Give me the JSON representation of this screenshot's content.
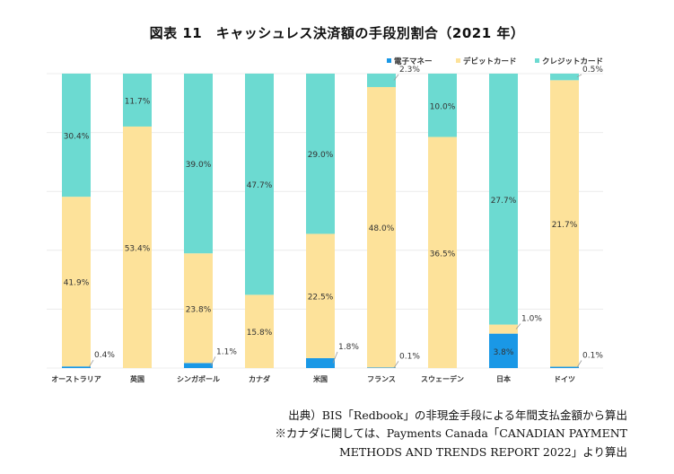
{
  "chart_data": {
    "type": "bar",
    "stacked": true,
    "title": "図表 11　キャッシュレス決済額の手段別割合（2021 年）",
    "categories": [
      "オーストラリア",
      "英国",
      "シンガポール",
      "カナダ",
      "米国",
      "フランス",
      "スウェーデン",
      "日本",
      "ドイツ"
    ],
    "series": [
      {
        "name": "電子マネー",
        "color": "#1a98e6",
        "values": [
          0.4,
          0,
          1.1,
          0,
          1.8,
          0.1,
          0,
          3.8,
          0.1
        ],
        "labels": [
          "0.4%",
          "",
          "1.1%",
          "",
          "1.8%",
          "0.1%",
          "",
          "3.8%",
          "0.1%"
        ]
      },
      {
        "name": "デビットカード",
        "color": "#fde29a",
        "values": [
          41.9,
          53.4,
          23.8,
          15.8,
          22.5,
          48.0,
          36.5,
          1.0,
          21.7
        ],
        "labels": [
          "41.9%",
          "53.4%",
          "23.8%",
          "15.8%",
          "22.5%",
          "48.0%",
          "36.5%",
          "1.0%",
          "21.7%"
        ]
      },
      {
        "name": "クレジットカード",
        "color": "#6cdad1",
        "values": [
          30.4,
          11.7,
          39.0,
          47.7,
          29.0,
          2.3,
          10.0,
          27.7,
          0.5
        ],
        "labels": [
          "30.4%",
          "11.7%",
          "39.0%",
          "47.7%",
          "29.0%",
          "2.3%",
          "10.0%",
          "27.7%",
          "0.5%"
        ]
      }
    ],
    "legend_position": "top-right",
    "ylabel": "",
    "xlabel": ""
  },
  "source": {
    "line1": "出典）BIS「Redbook」の非現金手段による年間支払金額から算出",
    "line2": "※カナダに関しては、Payments Canada「CANADIAN PAYMENT",
    "line3": "METHODS AND TRENDS REPORT 2022」より算出"
  }
}
